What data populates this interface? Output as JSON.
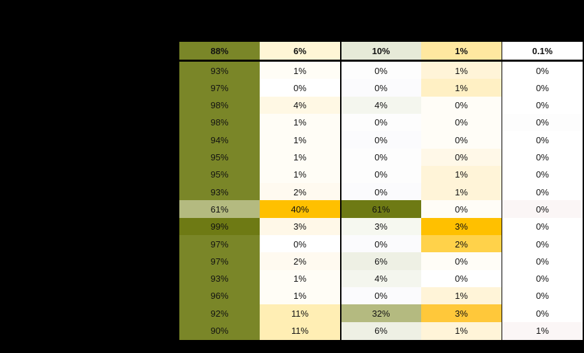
{
  "chart_data": {
    "type": "heatmap",
    "columns": [
      "88%",
      "6%",
      "10%",
      "1%",
      "0.1%"
    ],
    "rows": [
      [
        "93%",
        "1%",
        "0%",
        "1%",
        "0%"
      ],
      [
        "97%",
        "0%",
        "0%",
        "1%",
        "0%"
      ],
      [
        "98%",
        "4%",
        "4%",
        "0%",
        "0%"
      ],
      [
        "98%",
        "1%",
        "0%",
        "0%",
        "0%"
      ],
      [
        "94%",
        "1%",
        "0%",
        "0%",
        "0%"
      ],
      [
        "95%",
        "1%",
        "0%",
        "0%",
        "0%"
      ],
      [
        "95%",
        "1%",
        "0%",
        "1%",
        "0%"
      ],
      [
        "93%",
        "2%",
        "0%",
        "1%",
        "0%"
      ],
      [
        "61%",
        "40%",
        "61%",
        "0%",
        "0%"
      ],
      [
        "99%",
        "3%",
        "3%",
        "3%",
        "0%"
      ],
      [
        "97%",
        "0%",
        "0%",
        "2%",
        "0%"
      ],
      [
        "97%",
        "2%",
        "6%",
        "0%",
        "0%"
      ],
      [
        "93%",
        "1%",
        "4%",
        "0%",
        "0%"
      ],
      [
        "96%",
        "1%",
        "0%",
        "1%",
        "0%"
      ],
      [
        "92%",
        "11%",
        "32%",
        "3%",
        "0%"
      ],
      [
        "90%",
        "11%",
        "6%",
        "1%",
        "1%"
      ]
    ],
    "header_colors": [
      "#7a8628",
      "#fff6d6",
      "#e6ead8",
      "#ffe8a0",
      "#ffffff"
    ],
    "cell_colors": [
      [
        "#7a8628",
        "#fffdf6",
        "#fdfdfd",
        "#fff4d8",
        "#ffffff"
      ],
      [
        "#7a8628",
        "#ffffff",
        "#fbfbfd",
        "#fff0c4",
        "#ffffff"
      ],
      [
        "#7a8628",
        "#fff8e4",
        "#f4f6ee",
        "#fffdf7",
        "#ffffff"
      ],
      [
        "#7a8628",
        "#fffdf6",
        "#fdfdfd",
        "#fffdf7",
        "#fdfdfd"
      ],
      [
        "#7a8628",
        "#fffdf6",
        "#fbfbfd",
        "#fffdf7",
        "#ffffff"
      ],
      [
        "#7a8628",
        "#fffdf6",
        "#fdfdfd",
        "#fff8e8",
        "#ffffff"
      ],
      [
        "#7a8628",
        "#fffdf6",
        "#fdfdfd",
        "#fff4d8",
        "#ffffff"
      ],
      [
        "#7a8628",
        "#fffaf0",
        "#fbfbfd",
        "#fff4d8",
        "#ffffff"
      ],
      [
        "#b4ba80",
        "#ffc000",
        "#6e7a14",
        "#fffdf7",
        "#fbf6f6"
      ],
      [
        "#6e7a14",
        "#fff8e8",
        "#f6f8f0",
        "#ffc000",
        "#ffffff"
      ],
      [
        "#7a8628",
        "#ffffff",
        "#fbfbfd",
        "#ffd24a",
        "#ffffff"
      ],
      [
        "#7a8628",
        "#fffaf0",
        "#eef0e4",
        "#fffdf7",
        "#ffffff"
      ],
      [
        "#7a8628",
        "#fffdf6",
        "#f4f6ee",
        "#ffffff",
        "#ffffff"
      ],
      [
        "#7a8628",
        "#fffdf6",
        "#fbfbfd",
        "#fff4d8",
        "#ffffff"
      ],
      [
        "#7a8628",
        "#ffeeb4",
        "#b4ba80",
        "#ffc83a",
        "#ffffff"
      ],
      [
        "#7a8628",
        "#ffeeb4",
        "#eef0e4",
        "#fff4d8",
        "#fbf6f6"
      ]
    ]
  }
}
